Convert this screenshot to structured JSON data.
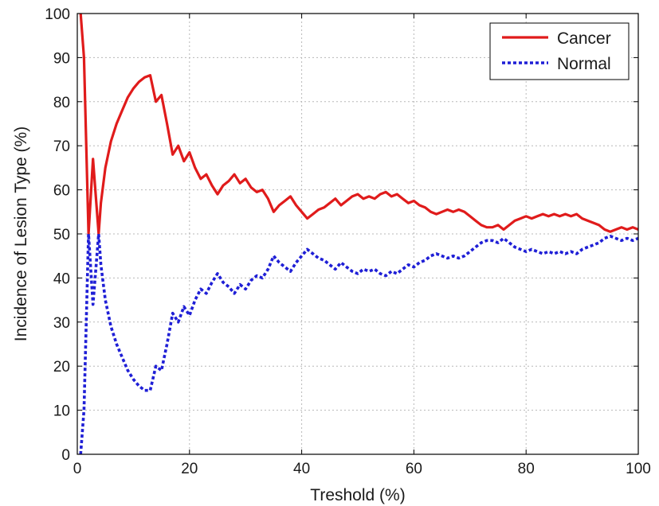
{
  "chart_data": {
    "type": "line",
    "title": "",
    "xlabel": "Treshold (%)",
    "ylabel": "Incidence of Lesion Type (%)",
    "xlim": [
      0,
      100
    ],
    "ylim": [
      0,
      100
    ],
    "xticks": [
      0,
      20,
      40,
      60,
      80,
      100
    ],
    "yticks": [
      0,
      10,
      20,
      30,
      40,
      50,
      60,
      70,
      80,
      90,
      100
    ],
    "grid": true,
    "legend_position": "top-right",
    "series": [
      {
        "name": "Cancer",
        "color": "#e01b1b",
        "style": "solid",
        "x": [
          0.6,
          1.2,
          2,
          2.8,
          3.8,
          4.2,
          5,
          6,
          7,
          8,
          9,
          10,
          11,
          12,
          13,
          14,
          15,
          16,
          17,
          18,
          19,
          20,
          21,
          22,
          23,
          24,
          25,
          26,
          27,
          28,
          29,
          30,
          31,
          32,
          33,
          34,
          35,
          36,
          37,
          38,
          39,
          40,
          41,
          42,
          43,
          44,
          45,
          46,
          47,
          48,
          49,
          50,
          51,
          52,
          53,
          54,
          55,
          56,
          57,
          58,
          59,
          60,
          61,
          62,
          63,
          64,
          65,
          66,
          67,
          68,
          69,
          70,
          71,
          72,
          73,
          74,
          75,
          76,
          77,
          78,
          79,
          80,
          81,
          82,
          83,
          84,
          85,
          86,
          87,
          88,
          89,
          90,
          91,
          92,
          93,
          94,
          95,
          96,
          97,
          98,
          99,
          100
        ],
        "values": [
          100,
          90,
          50,
          67,
          50,
          57,
          65,
          71,
          75,
          78,
          81,
          83,
          84.5,
          85.5,
          86,
          80,
          81.5,
          75,
          68,
          70,
          66.5,
          68.5,
          65,
          62.5,
          63.5,
          61,
          59,
          61,
          62,
          63.5,
          61.5,
          62.5,
          60.5,
          59.5,
          60,
          58,
          55,
          56.5,
          57.5,
          58.5,
          56.5,
          55,
          53.5,
          54.5,
          55.5,
          56,
          57,
          58,
          56.5,
          57.5,
          58.5,
          59,
          58,
          58.5,
          58,
          59,
          59.5,
          58.5,
          59,
          58,
          57,
          57.5,
          56.5,
          56,
          55,
          54.5,
          55,
          55.5,
          55,
          55.5,
          55,
          54,
          53,
          52,
          51.5,
          51.5,
          52,
          51,
          52,
          53,
          53.5,
          54,
          53.5,
          54,
          54.5,
          54,
          54.5,
          54,
          54.5,
          54,
          54.5,
          53.5,
          53,
          52.5,
          52,
          51,
          50.5,
          51,
          51.5,
          51,
          51.5,
          51
        ]
      },
      {
        "name": "Normal",
        "color": "#1f1fd6",
        "style": "dotted",
        "x": [
          0.6,
          1.2,
          2,
          2.8,
          3.8,
          4.2,
          5,
          6,
          7,
          8,
          9,
          10,
          11,
          12,
          13,
          14,
          15,
          16,
          17,
          18,
          19,
          20,
          21,
          22,
          23,
          24,
          25,
          26,
          27,
          28,
          29,
          30,
          31,
          32,
          33,
          34,
          35,
          36,
          37,
          38,
          39,
          40,
          41,
          42,
          43,
          44,
          45,
          46,
          47,
          48,
          49,
          50,
          51,
          52,
          53,
          54,
          55,
          56,
          57,
          58,
          59,
          60,
          61,
          62,
          63,
          64,
          65,
          66,
          67,
          68,
          69,
          70,
          71,
          72,
          73,
          74,
          75,
          76,
          77,
          78,
          79,
          80,
          81,
          82,
          83,
          84,
          85,
          86,
          87,
          88,
          89,
          90,
          91,
          92,
          93,
          94,
          95,
          96,
          97,
          98,
          99,
          100
        ],
        "values": [
          0,
          10,
          50,
          34,
          50,
          43,
          35,
          29,
          25,
          22,
          19,
          17,
          15.5,
          14.5,
          14.5,
          20,
          19,
          25,
          32,
          30,
          33.5,
          31.5,
          35,
          37.5,
          36.5,
          39,
          41,
          39,
          38,
          36.5,
          38.5,
          37.5,
          39.5,
          40.5,
          40,
          42,
          45,
          43.5,
          42.5,
          41.5,
          43.5,
          45,
          46.5,
          45.5,
          44.5,
          44,
          43,
          42,
          43.5,
          42.5,
          41.5,
          41,
          42,
          41.5,
          42,
          41,
          40.5,
          41.5,
          41,
          42,
          43,
          42.5,
          43.5,
          44,
          45,
          45.5,
          45,
          44.5,
          45,
          44.5,
          45,
          46,
          47,
          48,
          48.5,
          48.5,
          48,
          49,
          48,
          47,
          46.5,
          46,
          46.5,
          46,
          45.5,
          46,
          45.5,
          46,
          45.5,
          46,
          45.5,
          46.5,
          47,
          47.5,
          48,
          49,
          49.5,
          49,
          48.5,
          49,
          48.5,
          49
        ]
      }
    ]
  }
}
